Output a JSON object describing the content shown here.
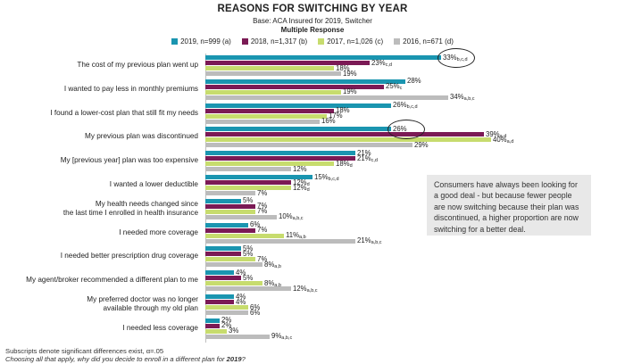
{
  "chart_data": {
    "type": "bar",
    "orientation": "horizontal",
    "title": "REASONS FOR SWITCHING BY YEAR",
    "subtitle": "Base: ACA Insured for 2019, Switcher",
    "subtitle2": "Multiple Response",
    "xlim": [
      0,
      45
    ],
    "grid": false,
    "legend_position": "top",
    "series": [
      {
        "name": "2019, n=999 (a)",
        "color": "#1a95b0",
        "values": [
          33,
          28,
          26,
          26,
          21,
          15,
          5,
          6,
          5,
          4,
          4,
          2
        ],
        "sig": [
          "b,c,d",
          "",
          "b,c,d",
          "",
          "",
          "b,c,d",
          "",
          "",
          "",
          "",
          "",
          ""
        ]
      },
      {
        "name": "2018, n=1,317 (b)",
        "color": "#7b1a55",
        "values": [
          23,
          25,
          18,
          39,
          21,
          12,
          7,
          7,
          5,
          5,
          4,
          2
        ],
        "sig": [
          "c,d",
          "c",
          "",
          "a,d",
          "c,d",
          "d",
          "",
          "",
          "",
          "",
          "",
          ""
        ]
      },
      {
        "name": "2017, n=1,026 (c)",
        "color": "#c7dc6e",
        "values": [
          18,
          19,
          17,
          40,
          18,
          12,
          7,
          11,
          7,
          8,
          6,
          3
        ],
        "sig": [
          "",
          "",
          "",
          "a,d",
          "d",
          "d",
          "",
          "a,b",
          "",
          "a,b",
          "",
          ""
        ]
      },
      {
        "name": "2016, n=671 (d)",
        "color": "#bcbcbc",
        "values": [
          19,
          34,
          16,
          29,
          12,
          7,
          10,
          21,
          8,
          12,
          6,
          9
        ],
        "sig": [
          "",
          "a,b,c",
          "",
          "",
          "",
          "",
          "a,b,c",
          "a,b,c",
          "a,b",
          "a,b,c",
          "",
          "a,b,c"
        ]
      }
    ],
    "categories": [
      "The cost of my previous plan went up",
      "I wanted to pay less in monthly premiums",
      "I found a lower-cost plan that still fit my needs",
      "My previous plan was discontinued",
      "My [previous year] plan was too expensive",
      "I wanted a lower deductible",
      "My health needs changed since\nthe last time I enrolled in health insurance",
      "I needed more coverage",
      "I needed better prescription drug coverage",
      "My agent/broker recommended a different plan to me",
      "My preferred doctor was no longer\navailable through my old plan",
      "I needed less coverage"
    ],
    "circled": [
      {
        "category_index": 0,
        "series_index": 0
      },
      {
        "category_index": 3,
        "series_index": 0
      }
    ],
    "callout": "Consumers have always been looking for a good deal - but because fewer people are now switching because their plan was discontinued, a higher proportion are now switching for a better deal."
  },
  "footnote": "Subscripts denote significant differences exist, α=.05",
  "question_prefix": "Choosing all that apply, why did you decide to enroll in a different plan for ",
  "question_year": "2019",
  "question_suffix": "?"
}
